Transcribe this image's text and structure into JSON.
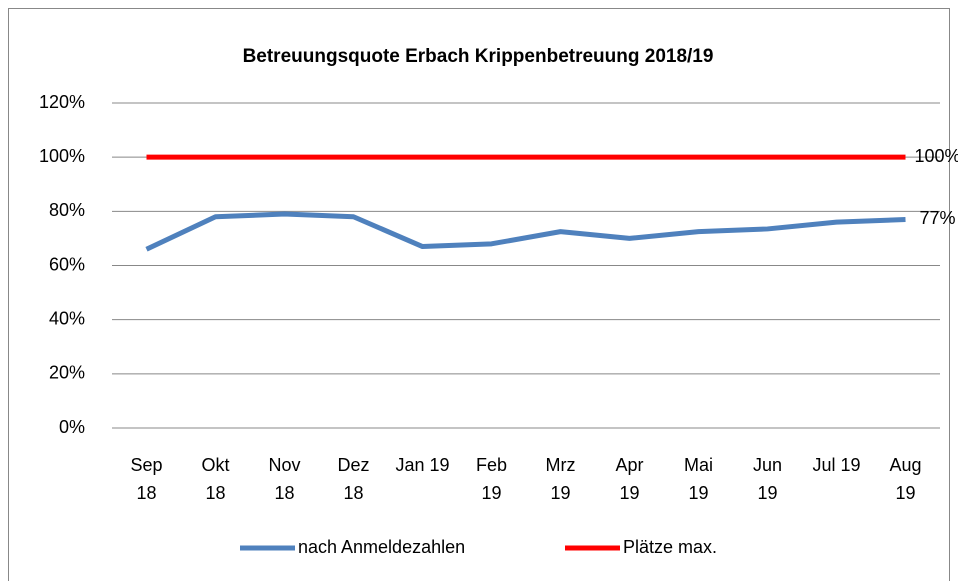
{
  "chart_data": {
    "type": "line",
    "title": "Betreuungsquote Erbach Krippenbetreuung 2018/19",
    "categories": [
      "Sep\n18",
      "Okt\n18",
      "Nov\n18",
      "Dez\n18",
      "Jan 19",
      "Feb\n19",
      "Mrz\n19",
      "Apr\n19",
      "Mai\n19",
      "Jun\n19",
      "Jul 19",
      "Aug\n19"
    ],
    "series": [
      {
        "name": "nach Anmeldezahlen",
        "color": "#4f81bd",
        "values": [
          66,
          78,
          79,
          78,
          67,
          68,
          72.5,
          70,
          72.5,
          73.5,
          76,
          77
        ],
        "value_labels": [
          null,
          null,
          null,
          null,
          null,
          null,
          null,
          null,
          null,
          null,
          null,
          "77%"
        ]
      },
      {
        "name": "Plätze max.",
        "color": "#ff0000",
        "values": [
          100,
          100,
          100,
          100,
          100,
          100,
          100,
          100,
          100,
          100,
          100,
          100
        ],
        "value_labels": [
          null,
          null,
          null,
          null,
          null,
          null,
          null,
          null,
          null,
          null,
          null,
          "100%"
        ]
      }
    ],
    "ylim": [
      0,
      120
    ],
    "yticks": [
      {
        "value": 0,
        "label": "0%"
      },
      {
        "value": 20,
        "label": "20%"
      },
      {
        "value": 40,
        "label": "40%"
      },
      {
        "value": 60,
        "label": "60%"
      },
      {
        "value": 80,
        "label": "80%"
      },
      {
        "value": 100,
        "label": "100%"
      },
      {
        "value": 120,
        "label": "120%"
      }
    ],
    "grid": true,
    "legend": "bottom"
  }
}
